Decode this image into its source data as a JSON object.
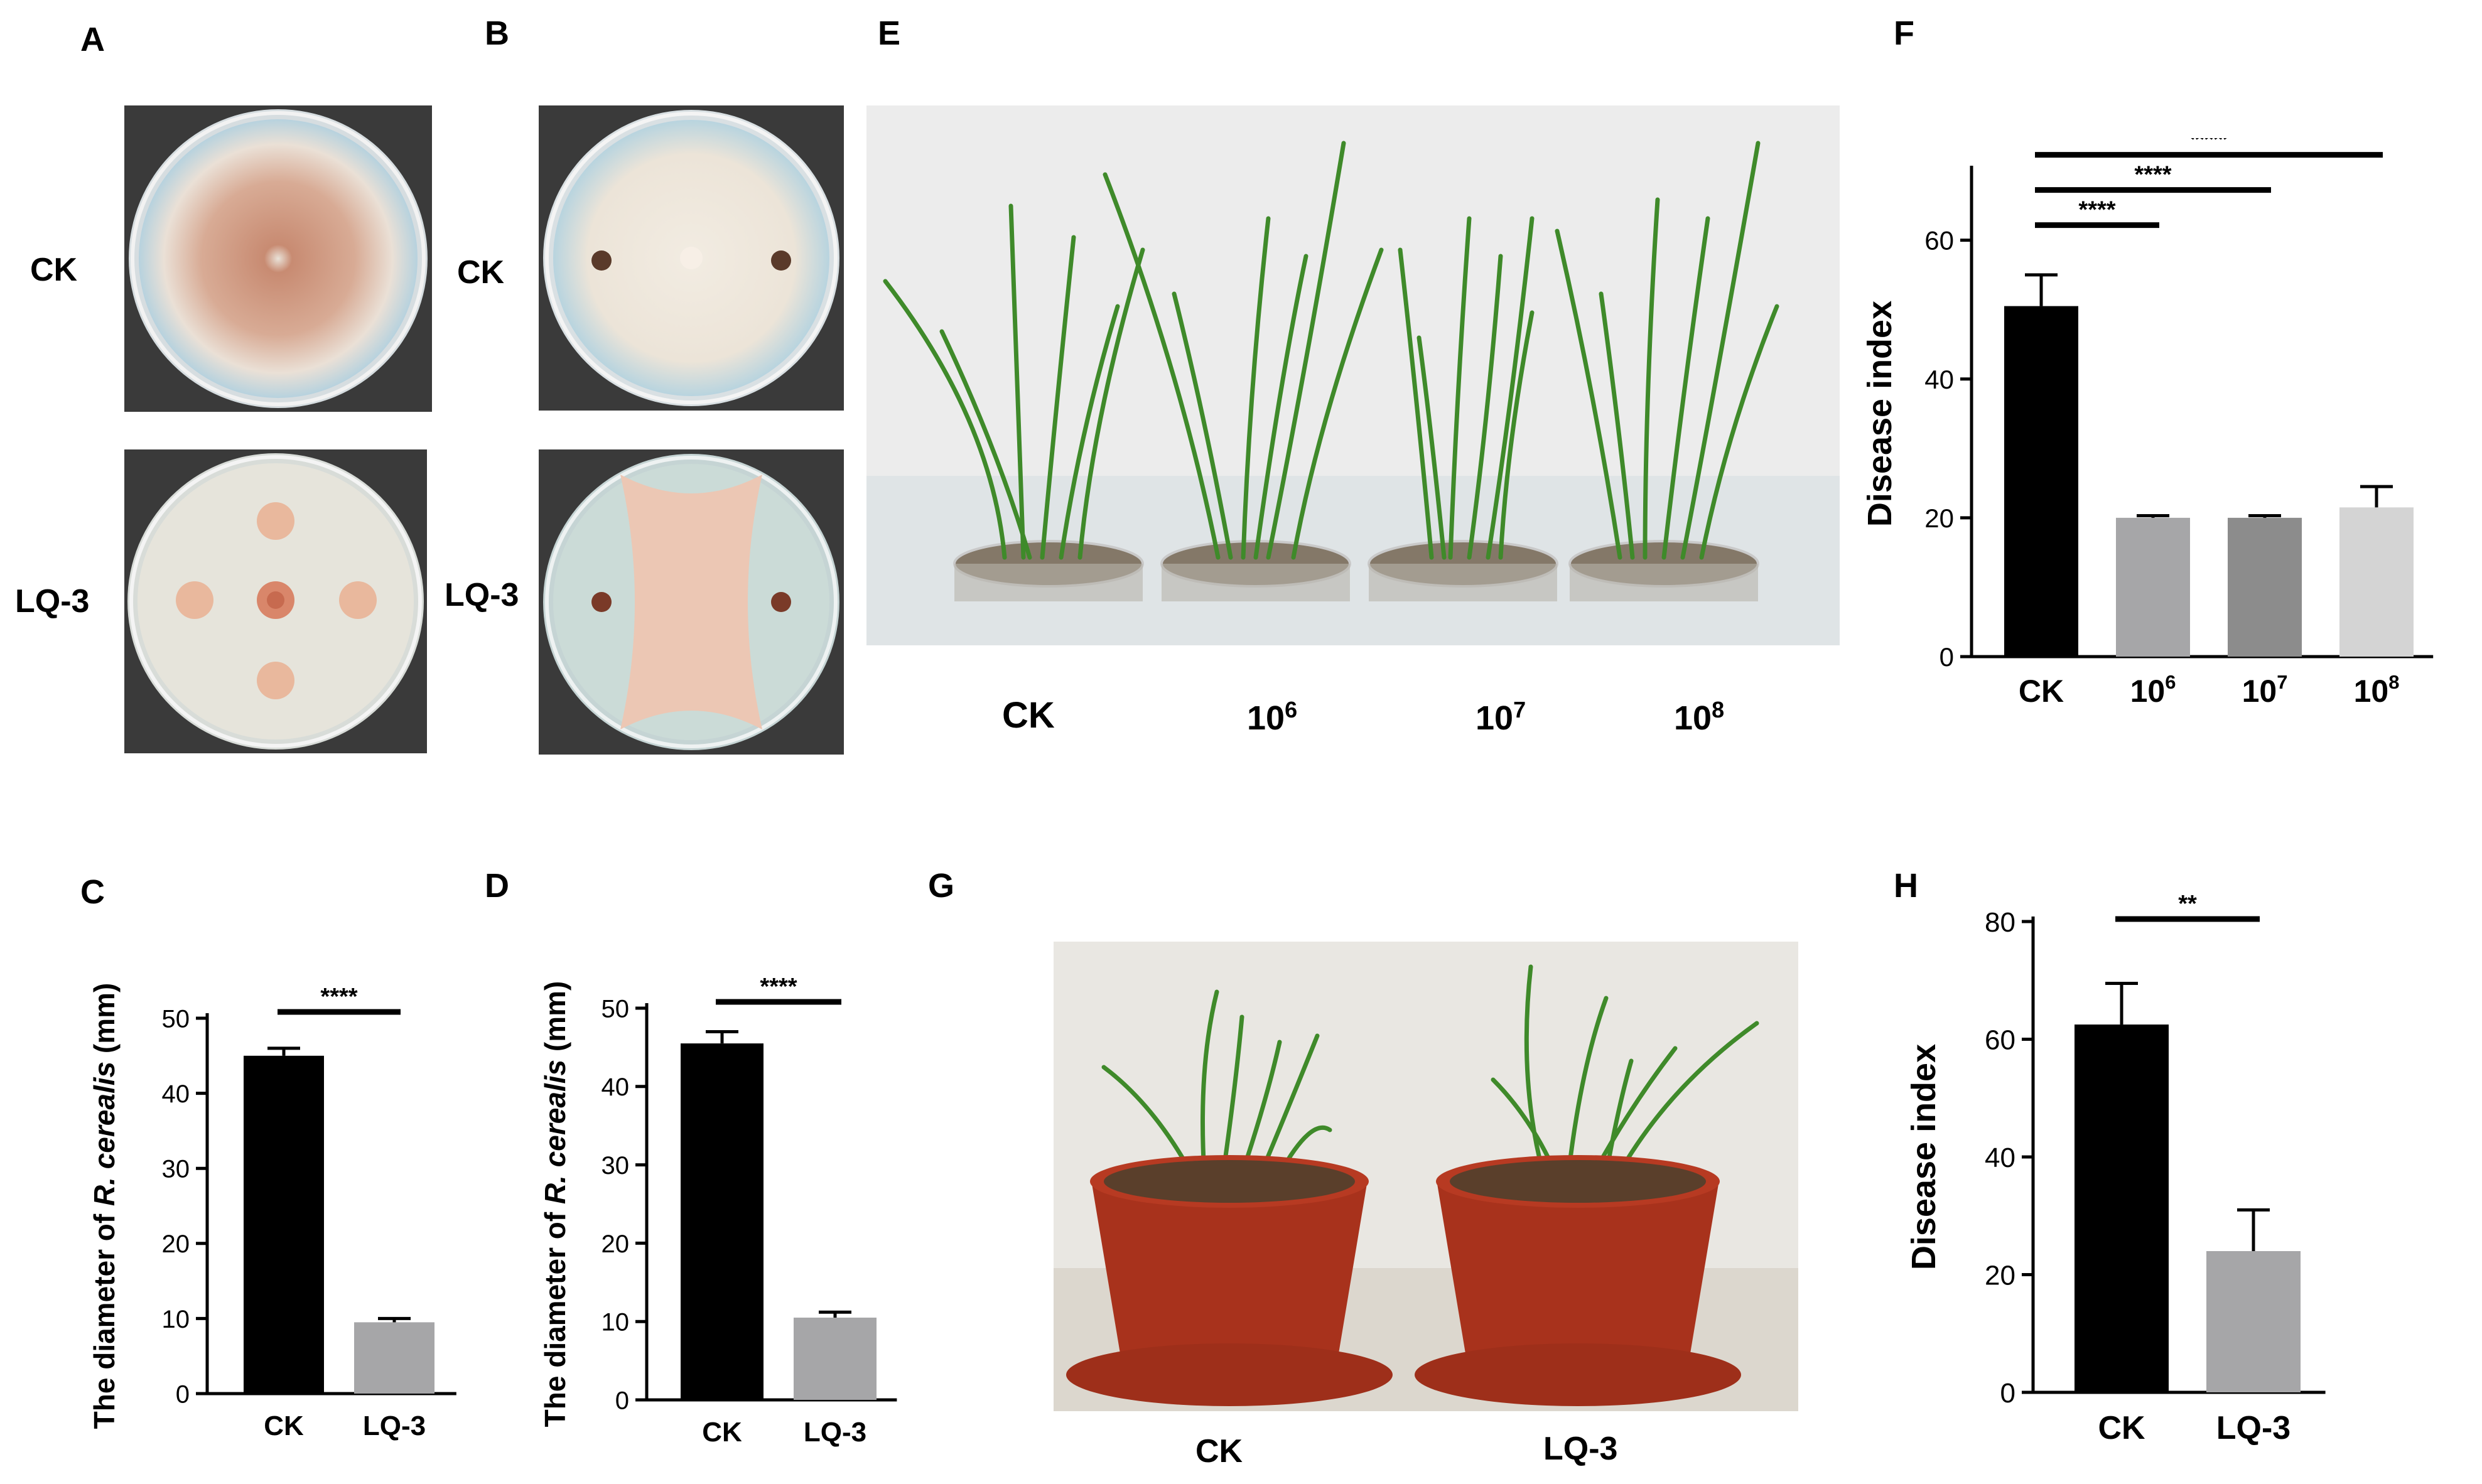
{
  "panels": {
    "A": {
      "letter": "A",
      "row_labels": [
        "CK",
        "LQ-3"
      ]
    },
    "B": {
      "letter": "B",
      "row_labels": [
        "CK",
        "LQ-3"
      ]
    },
    "C": {
      "letter": "C"
    },
    "D": {
      "letter": "D"
    },
    "E": {
      "letter": "E",
      "labels": [
        {
          "base": "CK",
          "sup": ""
        },
        {
          "base": "10",
          "sup": "6"
        },
        {
          "base": "10",
          "sup": "7"
        },
        {
          "base": "10",
          "sup": "8"
        }
      ]
    },
    "F": {
      "letter": "F"
    },
    "G": {
      "letter": "G",
      "labels": [
        "CK",
        "LQ-3"
      ]
    },
    "H": {
      "letter": "H"
    }
  },
  "colors": {
    "black_bar": "#000000",
    "gray_bar": "#a6a6a8",
    "dark_gray_bar": "#8c8c8c",
    "light_gray_bar": "#d4d4d4",
    "agar_ck": "#e4cfc1",
    "colony": "#d99f82",
    "pot": "#a8321c",
    "leaf": "#3f8a2a"
  },
  "chart_data": [
    {
      "id": "C",
      "type": "bar",
      "ylabel_pre": "The diameter of ",
      "ylabel_ital": "R. cerealis",
      "ylabel_post": " (mm)",
      "categories": [
        "CK",
        "LQ-3"
      ],
      "values": [
        45,
        9.5
      ],
      "errors": [
        1.0,
        0.5
      ],
      "ylim": [
        0,
        50
      ],
      "yticks": [
        0,
        10,
        20,
        30,
        40,
        50
      ],
      "colors": [
        "#000000",
        "#a6a6a8"
      ],
      "significance": [
        {
          "from": 0,
          "to": 1,
          "label": "****"
        }
      ]
    },
    {
      "id": "D",
      "type": "bar",
      "ylabel_pre": "The diameter of ",
      "ylabel_ital": "R. cerealis",
      "ylabel_post": " (mm)",
      "categories": [
        "CK",
        "LQ-3"
      ],
      "values": [
        45.5,
        10.5
      ],
      "errors": [
        1.5,
        0.7
      ],
      "ylim": [
        0,
        50
      ],
      "yticks": [
        0,
        10,
        20,
        30,
        40,
        50
      ],
      "colors": [
        "#000000",
        "#a6a6a8"
      ],
      "significance": [
        {
          "from": 0,
          "to": 1,
          "label": "****"
        }
      ]
    },
    {
      "id": "F",
      "type": "bar",
      "ylabel": "Disease index",
      "categories": [
        {
          "base": "CK",
          "sup": ""
        },
        {
          "base": "10",
          "sup": "6"
        },
        {
          "base": "10",
          "sup": "7"
        },
        {
          "base": "10",
          "sup": "8"
        }
      ],
      "values": [
        50.5,
        20,
        20,
        21.5
      ],
      "errors": [
        4.5,
        0.3,
        0.3,
        3.0
      ],
      "ylim": [
        0,
        70
      ],
      "yticks": [
        0,
        20,
        40,
        60
      ],
      "colors": [
        "#000000",
        "#a6a6a8",
        "#8c8c8c",
        "#d4d4d4"
      ],
      "significance": [
        {
          "from": 0,
          "to": 1,
          "label": "****"
        },
        {
          "from": 0,
          "to": 2,
          "label": "****"
        },
        {
          "from": 0,
          "to": 3,
          "label": "****"
        }
      ]
    },
    {
      "id": "H",
      "type": "bar",
      "ylabel": "Disease index",
      "categories": [
        "CK",
        "LQ-3"
      ],
      "values": [
        62.5,
        24
      ],
      "errors": [
        7.0,
        7.0
      ],
      "ylim": [
        0,
        80
      ],
      "yticks": [
        0,
        20,
        40,
        60,
        80
      ],
      "colors": [
        "#000000",
        "#a6a6a8"
      ],
      "significance": [
        {
          "from": 0,
          "to": 1,
          "label": "**"
        }
      ]
    }
  ]
}
